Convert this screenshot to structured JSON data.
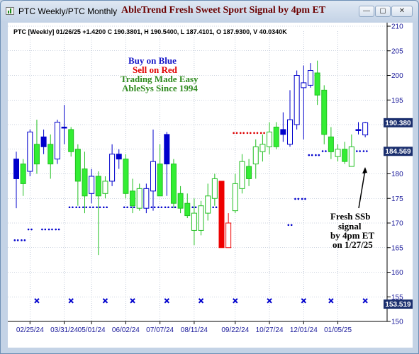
{
  "window": {
    "title": "PTC Weekly/PTC Monthly",
    "buttons": {
      "minimize": "—",
      "maximize": "▢",
      "close": "✕"
    }
  },
  "colors": {
    "blue": "#0000cc",
    "bull_fill": "#33ee33",
    "bear_fill": "#ffffff",
    "red": "#ee0000",
    "dots_blue": "#0000cc",
    "dots_red": "#dd0000",
    "price_label_bg": "#1b2f6e",
    "grid": "#9aa8c0"
  },
  "chart_data": {
    "type": "candlestick",
    "title": "AbleTrend Fresh Sweet Sport Signal by 4pm ET",
    "info_line": "PTC [Weekly] 01/26/25 +1.4200 C 190.3801, H 190.5400, L 187.4101, O 187.9300, V 40.0340K",
    "ylim": [
      150,
      210
    ],
    "yticks": [
      150,
      155,
      160,
      165,
      170,
      175,
      180,
      185,
      190,
      195,
      200,
      205,
      210
    ],
    "date_labels": [
      {
        "text": "02/25/24",
        "index": 2
      },
      {
        "text": "03/31/24",
        "index": 7
      },
      {
        "text": "05/01/24",
        "index": 11
      },
      {
        "text": "06/02/24",
        "index": 16
      },
      {
        "text": "07/07/24",
        "index": 21
      },
      {
        "text": "08/11/24",
        "index": 26
      },
      {
        "text": "09/22/24",
        "index": 32
      },
      {
        "text": "10/27/24",
        "index": 37
      },
      {
        "text": "12/01/24",
        "index": 42
      },
      {
        "text": "01/05/25",
        "index": 47
      }
    ],
    "price_labels": [
      {
        "value": 190.38,
        "text": "190.380",
        "color": "#ffffff",
        "bg": "#1b2f6e"
      },
      {
        "value": 184.569,
        "text": "184.569",
        "color": "#ffffff",
        "bg": "#1b2f6e"
      },
      {
        "value": 153.519,
        "text": "153.519",
        "color": "#ffffff",
        "bg": "#1b2f6e"
      }
    ],
    "candles": [
      {
        "o": 183.0,
        "h": 184.5,
        "l": 173.0,
        "c": 179.0,
        "col": "blue"
      },
      {
        "o": 178.0,
        "h": 183.0,
        "l": 175.5,
        "c": 182.0,
        "col": "green"
      },
      {
        "o": 180.5,
        "h": 189.0,
        "l": 179.5,
        "c": 188.5,
        "col": "hollow_blue"
      },
      {
        "o": 186.0,
        "h": 191.0,
        "l": 180.0,
        "c": 182.0,
        "col": "green"
      },
      {
        "o": 187.5,
        "h": 189.0,
        "l": 184.0,
        "c": 185.5,
        "col": "blue"
      },
      {
        "o": 186.0,
        "h": 188.0,
        "l": 179.0,
        "c": 182.0,
        "col": "green"
      },
      {
        "o": 183.0,
        "h": 191.0,
        "l": 182.0,
        "c": 190.5,
        "col": "hollow_blue"
      },
      {
        "o": 189.5,
        "h": 194.0,
        "l": 186.0,
        "c": 189.5,
        "col": "blue"
      },
      {
        "o": 189.0,
        "h": 189.5,
        "l": 183.5,
        "c": 184.5,
        "col": "green"
      },
      {
        "o": 185.0,
        "h": 186.0,
        "l": 173.5,
        "c": 178.5,
        "col": "green"
      },
      {
        "o": 181.0,
        "h": 184.5,
        "l": 172.0,
        "c": 175.5,
        "col": "green"
      },
      {
        "o": 176.0,
        "h": 181.0,
        "l": 174.0,
        "c": 179.5,
        "col": "hollow_blue"
      },
      {
        "o": 179.5,
        "h": 180.5,
        "l": 163.5,
        "c": 175.5,
        "col": "green"
      },
      {
        "o": 176.0,
        "h": 179.5,
        "l": 175.0,
        "c": 178.5,
        "col": "hollow_green"
      },
      {
        "o": 178.5,
        "h": 186.0,
        "l": 177.5,
        "c": 184.0,
        "col": "hollow_blue"
      },
      {
        "o": 184.0,
        "h": 185.0,
        "l": 181.0,
        "c": 183.0,
        "col": "blue"
      },
      {
        "o": 183.0,
        "h": 184.0,
        "l": 175.0,
        "c": 176.0,
        "col": "green"
      },
      {
        "o": 176.5,
        "h": 179.0,
        "l": 172.0,
        "c": 173.5,
        "col": "green"
      },
      {
        "o": 173.0,
        "h": 178.0,
        "l": 172.5,
        "c": 177.0,
        "col": "hollow_green"
      },
      {
        "o": 173.0,
        "h": 178.0,
        "l": 172.0,
        "c": 177.0,
        "col": "hollow_blue"
      },
      {
        "o": 176.5,
        "h": 189.0,
        "l": 172.5,
        "c": 182.5,
        "col": "hollow_blue"
      },
      {
        "o": 182.0,
        "h": 186.0,
        "l": 175.5,
        "c": 175.5,
        "col": "green"
      },
      {
        "o": 188.0,
        "h": 188.5,
        "l": 175.5,
        "c": 182.0,
        "col": "blue"
      },
      {
        "o": 182.0,
        "h": 183.0,
        "l": 173.0,
        "c": 174.0,
        "col": "green"
      },
      {
        "o": 176.0,
        "h": 177.5,
        "l": 172.0,
        "c": 173.0,
        "col": "green"
      },
      {
        "o": 174.0,
        "h": 176.0,
        "l": 171.0,
        "c": 171.5,
        "col": "green"
      },
      {
        "o": 172.0,
        "h": 175.0,
        "l": 165.5,
        "c": 168.5,
        "col": "hollow_green"
      },
      {
        "o": 168.5,
        "h": 174.5,
        "l": 167.5,
        "c": 173.5,
        "col": "hollow_green"
      },
      {
        "o": 172.0,
        "h": 178.0,
        "l": 170.5,
        "c": 175.5,
        "col": "hollow_green"
      },
      {
        "o": 175.0,
        "h": 180.0,
        "l": 173.5,
        "c": 179.0,
        "col": "hollow_green"
      },
      {
        "o": 178.5,
        "h": 178.5,
        "l": 165.0,
        "c": 165.0,
        "col": "red"
      },
      {
        "o": 170.0,
        "h": 172.0,
        "l": 165.0,
        "c": 165.0,
        "col": "hollow_red"
      },
      {
        "o": 172.5,
        "h": 180.0,
        "l": 172.0,
        "c": 178.0,
        "col": "hollow_green"
      },
      {
        "o": 177.0,
        "h": 184.0,
        "l": 176.0,
        "c": 182.5,
        "col": "hollow_green"
      },
      {
        "o": 179.0,
        "h": 183.0,
        "l": 177.5,
        "c": 181.5,
        "col": "green"
      },
      {
        "o": 182.0,
        "h": 187.0,
        "l": 179.0,
        "c": 185.5,
        "col": "hollow_green"
      },
      {
        "o": 184.5,
        "h": 188.0,
        "l": 182.5,
        "c": 186.0,
        "col": "hollow_green"
      },
      {
        "o": 185.5,
        "h": 190.5,
        "l": 184.0,
        "c": 188.5,
        "col": "hollow_green"
      },
      {
        "o": 189.5,
        "h": 190.5,
        "l": 185.0,
        "c": 185.5,
        "col": "green"
      },
      {
        "o": 188.0,
        "h": 192.5,
        "l": 186.5,
        "c": 189.0,
        "col": "blue"
      },
      {
        "o": 186.0,
        "h": 197.0,
        "l": 185.5,
        "c": 191.0,
        "col": "hollow_blue"
      },
      {
        "o": 190.0,
        "h": 201.0,
        "l": 189.0,
        "c": 200.0,
        "col": "hollow_blue"
      },
      {
        "o": 197.5,
        "h": 202.0,
        "l": 187.0,
        "c": 198.5,
        "col": "hollow_blue"
      },
      {
        "o": 198.0,
        "h": 202.5,
        "l": 197.5,
        "c": 201.0,
        "col": "hollow_blue"
      },
      {
        "o": 200.5,
        "h": 203.0,
        "l": 194.0,
        "c": 196.0,
        "col": "green"
      },
      {
        "o": 197.0,
        "h": 198.0,
        "l": 186.0,
        "c": 188.0,
        "col": "green"
      },
      {
        "o": 187.5,
        "h": 189.5,
        "l": 183.0,
        "c": 184.5,
        "col": "green"
      },
      {
        "o": 183.5,
        "h": 186.0,
        "l": 182.5,
        "c": 185.0,
        "col": "hollow_green"
      },
      {
        "o": 185.0,
        "h": 186.5,
        "l": 182.0,
        "c": 182.5,
        "col": "green"
      },
      {
        "o": 185.5,
        "h": 188.0,
        "l": 181.5,
        "c": 181.5,
        "col": "hollow_green"
      },
      {
        "o": 189.0,
        "h": 190.5,
        "l": 188.0,
        "c": 189.0,
        "col": "blue"
      },
      {
        "o": 187.9,
        "h": 190.54,
        "l": 187.41,
        "c": 190.38,
        "col": "hollow_blue"
      }
    ],
    "blue_dots": [
      {
        "y": 166.5,
        "from": 0,
        "to": 1
      },
      {
        "y": 168.7,
        "from": 2,
        "to": 2
      },
      {
        "y": 168.7,
        "from": 4,
        "to": 6
      },
      {
        "y": 173.2,
        "from": 8,
        "to": 8
      },
      {
        "y": 173.2,
        "from": 9,
        "to": 9
      },
      {
        "y": 173.2,
        "from": 10,
        "to": 13
      },
      {
        "y": 173.2,
        "from": 16,
        "to": 26
      },
      {
        "y": 173.2,
        "from": 27,
        "to": 29
      },
      {
        "y": 169.6,
        "from": 40,
        "to": 40
      },
      {
        "y": 174.9,
        "from": 41,
        "to": 42
      },
      {
        "y": 183.8,
        "from": 43,
        "to": 44
      },
      {
        "y": 184.6,
        "from": 45,
        "to": 51
      }
    ],
    "red_dots": [
      {
        "y": 188.3,
        "from": 32,
        "to": 39
      }
    ],
    "x_marks": {
      "y": 154.2,
      "indices": [
        3,
        8,
        13,
        17,
        22,
        27,
        32,
        37,
        42,
        46,
        51
      ]
    },
    "annotations": {
      "buy": "Buy on Blue",
      "sell": "Sell on Red",
      "easy": "Trading Made Easy",
      "since": "AbleSys Since 1994",
      "fresh": [
        "Fresh SSb",
        "signal",
        "by 4pm ET",
        "on 1/27/25"
      ]
    }
  }
}
